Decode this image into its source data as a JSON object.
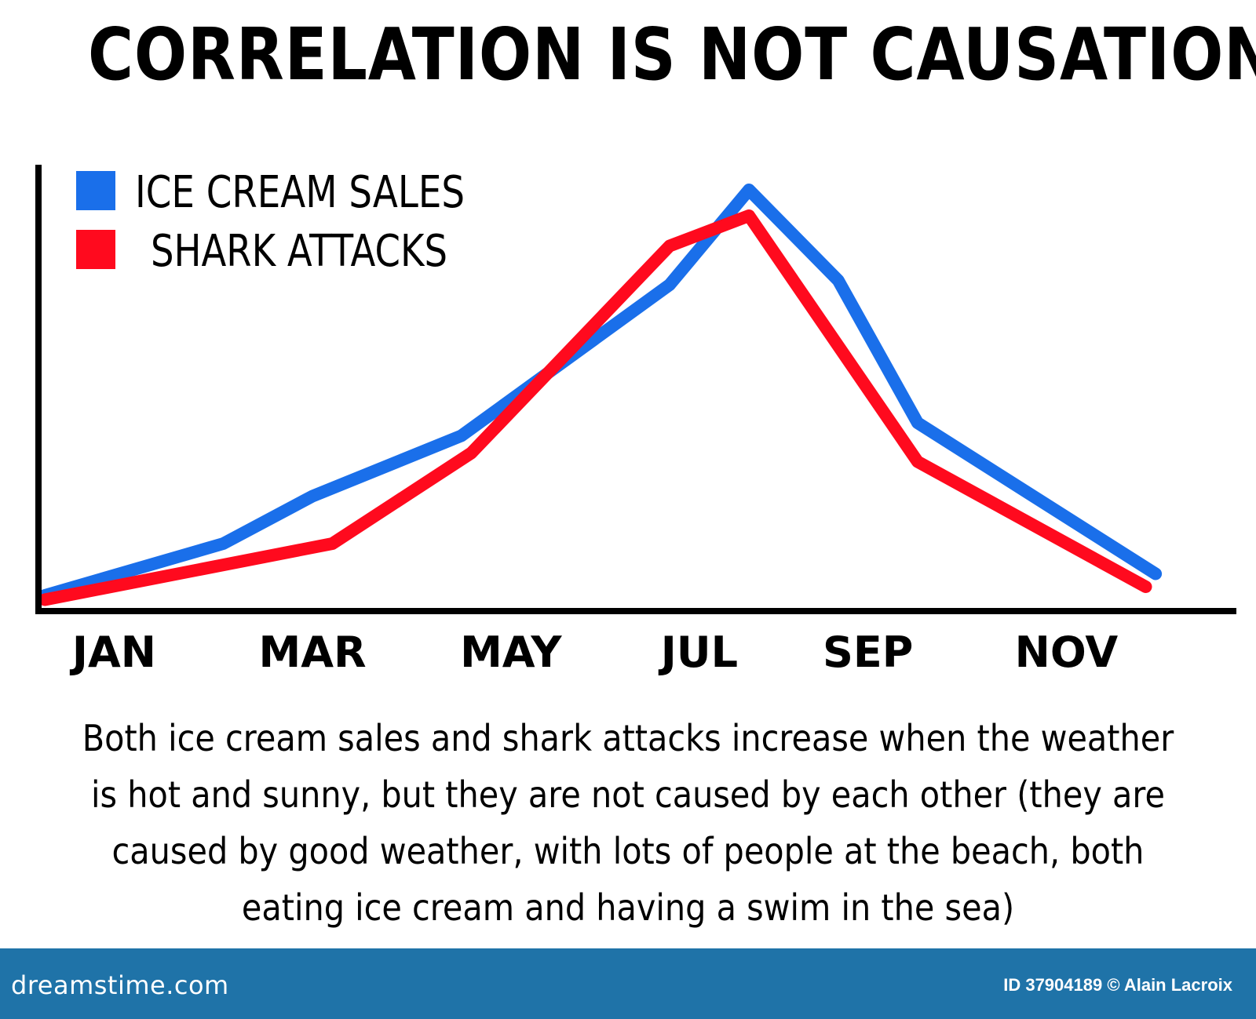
{
  "title": "CORRELATION IS NOT CAUSATION!",
  "caption": "Both ice cream sales and shark attacks increase when the weather is hot and sunny, but they are not caused by each other (they are caused by good weather, with lots of people at the beach, both eating ice cream and having a swim in the sea)",
  "footer": {
    "brand": "dreamstime.com",
    "image_id": "ID 37904189 © Alain Lacroix"
  },
  "colors": {
    "ice_cream": "#1a6fea",
    "shark": "#ff0a1e",
    "axis": "#000000",
    "footer_bg": "#1f73a8"
  },
  "chart_data": {
    "type": "line",
    "title": "CORRELATION IS NOT CAUSATION!",
    "xlabel": "",
    "ylabel": "",
    "ylim": [
      0,
      100
    ],
    "legend_position": "top-left",
    "grid": false,
    "x_tick_labels": [
      "JAN",
      "MAR",
      "MAY",
      "JUL",
      "SEP",
      "NOV"
    ],
    "x_tick_positions": [
      0.7,
      2.7,
      4.7,
      6.6,
      8.3,
      10.3
    ],
    "xlim": [
      0,
      11.5
    ],
    "series": [
      {
        "name": "ICE CREAM SALES",
        "color": "#1a6fea",
        "x": [
          0,
          1.8,
          2.7,
          4.2,
          6.3,
          7.1,
          8.0,
          8.8,
          11.2
        ],
        "y": [
          2,
          14,
          25,
          39,
          74,
          96,
          75,
          42,
          7
        ]
      },
      {
        "name": "SHARK ATTACKS",
        "color": "#ff0a1e",
        "x": [
          0,
          2.9,
          4.3,
          6.3,
          7.1,
          8.8,
          11.1
        ],
        "y": [
          1,
          14,
          35,
          83,
          90,
          33,
          4
        ]
      }
    ]
  }
}
